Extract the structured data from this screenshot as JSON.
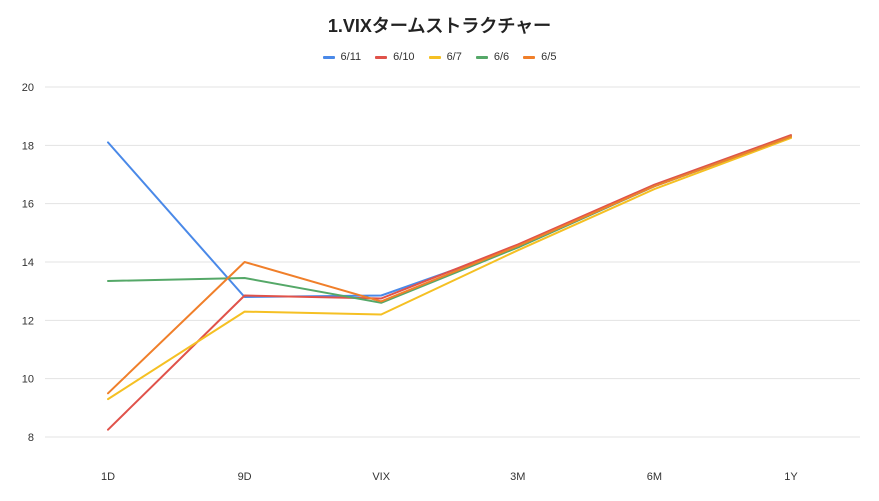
{
  "chart_data": {
    "type": "line",
    "title": "1.VIXタームストラクチャー",
    "xlabel": "",
    "ylabel": "",
    "categories": [
      "1D",
      "9D",
      "VIX",
      "3M",
      "6M",
      "1Y"
    ],
    "ylim": [
      7,
      20
    ],
    "yticks": [
      8,
      10,
      12,
      14,
      16,
      18,
      20
    ],
    "grid": true,
    "legend_position": "top",
    "series": [
      {
        "name": "6/11",
        "color": "#4a89e8",
        "values": [
          18.1,
          12.8,
          12.85,
          14.5,
          16.6,
          18.3
        ]
      },
      {
        "name": "6/10",
        "color": "#e0524a",
        "values": [
          8.25,
          12.85,
          12.75,
          14.6,
          16.65,
          18.35
        ]
      },
      {
        "name": "6/7",
        "color": "#f5c023",
        "values": [
          9.3,
          12.3,
          12.2,
          14.4,
          16.5,
          18.25
        ]
      },
      {
        "name": "6/6",
        "color": "#55a868",
        "values": [
          13.35,
          13.45,
          12.6,
          14.5,
          16.6,
          18.3
        ]
      },
      {
        "name": "6/5",
        "color": "#f07f2a",
        "values": [
          9.5,
          14.0,
          12.65,
          14.55,
          16.6,
          18.3
        ]
      }
    ]
  }
}
